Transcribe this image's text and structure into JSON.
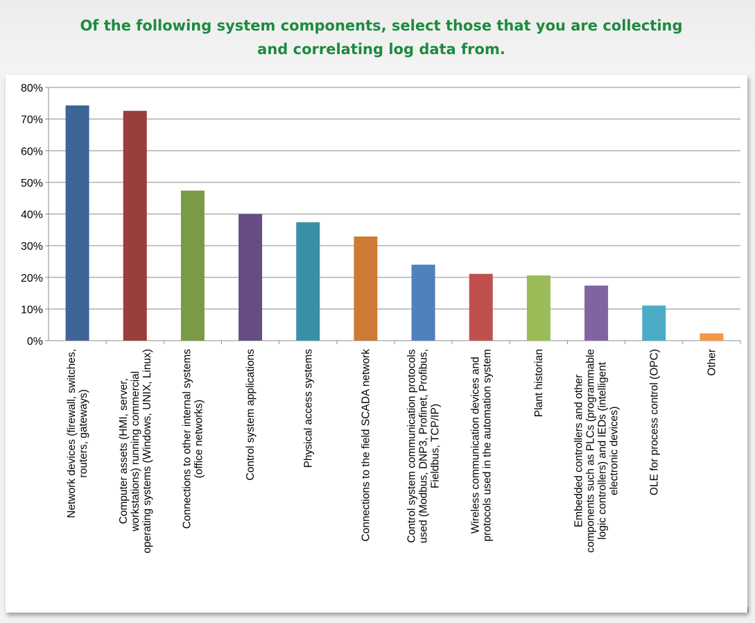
{
  "chart_data": {
    "type": "bar",
    "title": "Of the following system components, select those that you are collecting and correlating log data from.",
    "xlabel": "",
    "ylabel": "",
    "ylim": [
      0,
      80
    ],
    "yticks": [
      "0%",
      "10%",
      "20%",
      "30%",
      "40%",
      "50%",
      "60%",
      "70%",
      "80%"
    ],
    "grid": true,
    "legend": "none",
    "categories": [
      [
        "Network devices (firewall, switches,",
        "routers, gateways)"
      ],
      [
        "Computer assets (HMI, server,",
        "workstations) running commercial",
        "operating systems (Windows, UNIX, Linux)"
      ],
      [
        "Connections to other internal systems",
        "(office networks)"
      ],
      [
        "Control system applications"
      ],
      [
        "Physical access systems"
      ],
      [
        "Connections to the field SCADA network"
      ],
      [
        "Control system communication protocols",
        "used (Modbus, DNP3, Profinet, Profibus,",
        "Fieldbus, TCP/IP)"
      ],
      [
        "Wireless communication devices and",
        "protocols used in the automation system"
      ],
      [
        "Plant historian"
      ],
      [
        "Embedded controllers and other",
        "components such as PLCs (programmable",
        "logic controllers) and IEDs (intelligent",
        "electronic devices)"
      ],
      [
        "OLE for process control (OPC)"
      ],
      [
        "Other"
      ]
    ],
    "values": [
      74.3,
      72.6,
      47.4,
      40.0,
      37.4,
      32.9,
      24.0,
      21.1,
      20.6,
      17.4,
      11.1,
      2.3
    ],
    "colors": [
      "#3e6596",
      "#983e3b",
      "#7a9a45",
      "#664d84",
      "#3b8fa4",
      "#cc7b36",
      "#4f81bd",
      "#c0504d",
      "#9bbb59",
      "#8064a2",
      "#4bacc6",
      "#f79646"
    ]
  }
}
